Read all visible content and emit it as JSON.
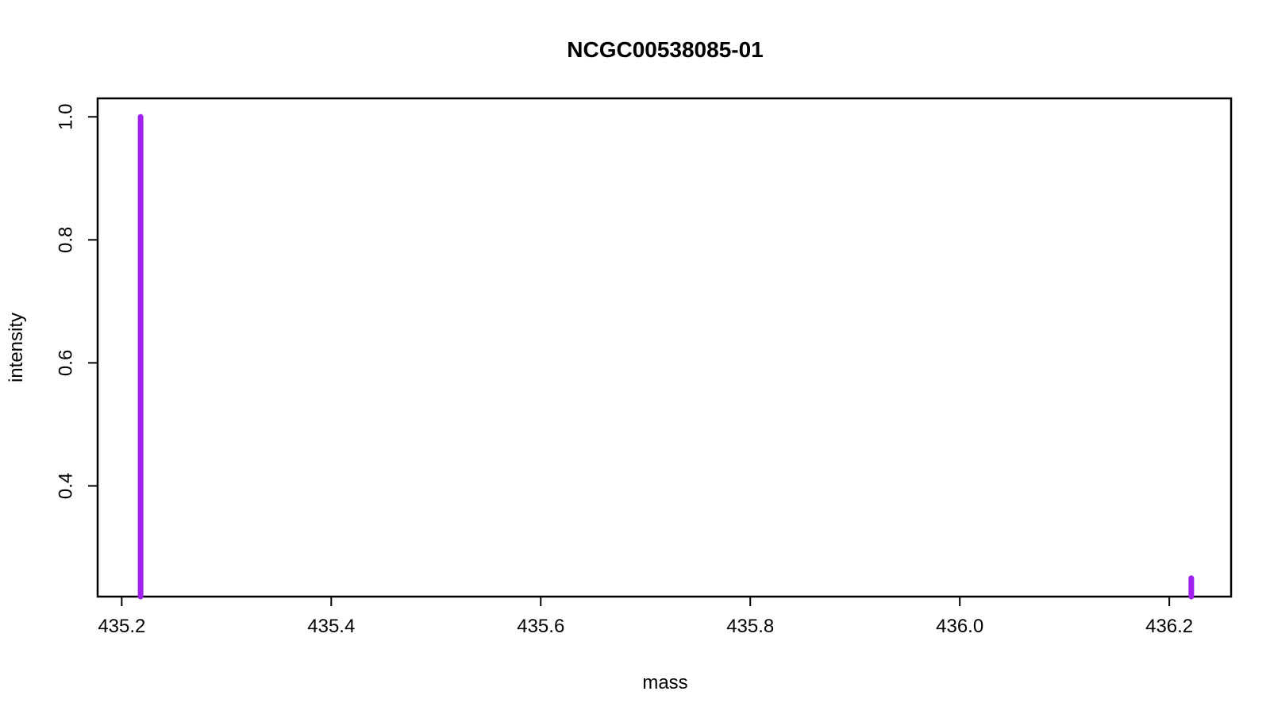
{
  "chart_data": {
    "type": "bar",
    "title": "NCGC00538085-01",
    "xlabel": "mass",
    "ylabel": "intensity",
    "xlim": [
      435.177,
      436.259
    ],
    "ylim": [
      0.22,
      1.03
    ],
    "x_ticks": [
      "435.2",
      "435.4",
      "435.6",
      "435.8",
      "436.0",
      "436.2"
    ],
    "y_ticks": [
      "0.4",
      "0.6",
      "0.8",
      "1.0"
    ],
    "x": [
      435.218,
      436.221
    ],
    "values": [
      1.0,
      0.25
    ],
    "color": "#a020f0",
    "grid": false
  }
}
